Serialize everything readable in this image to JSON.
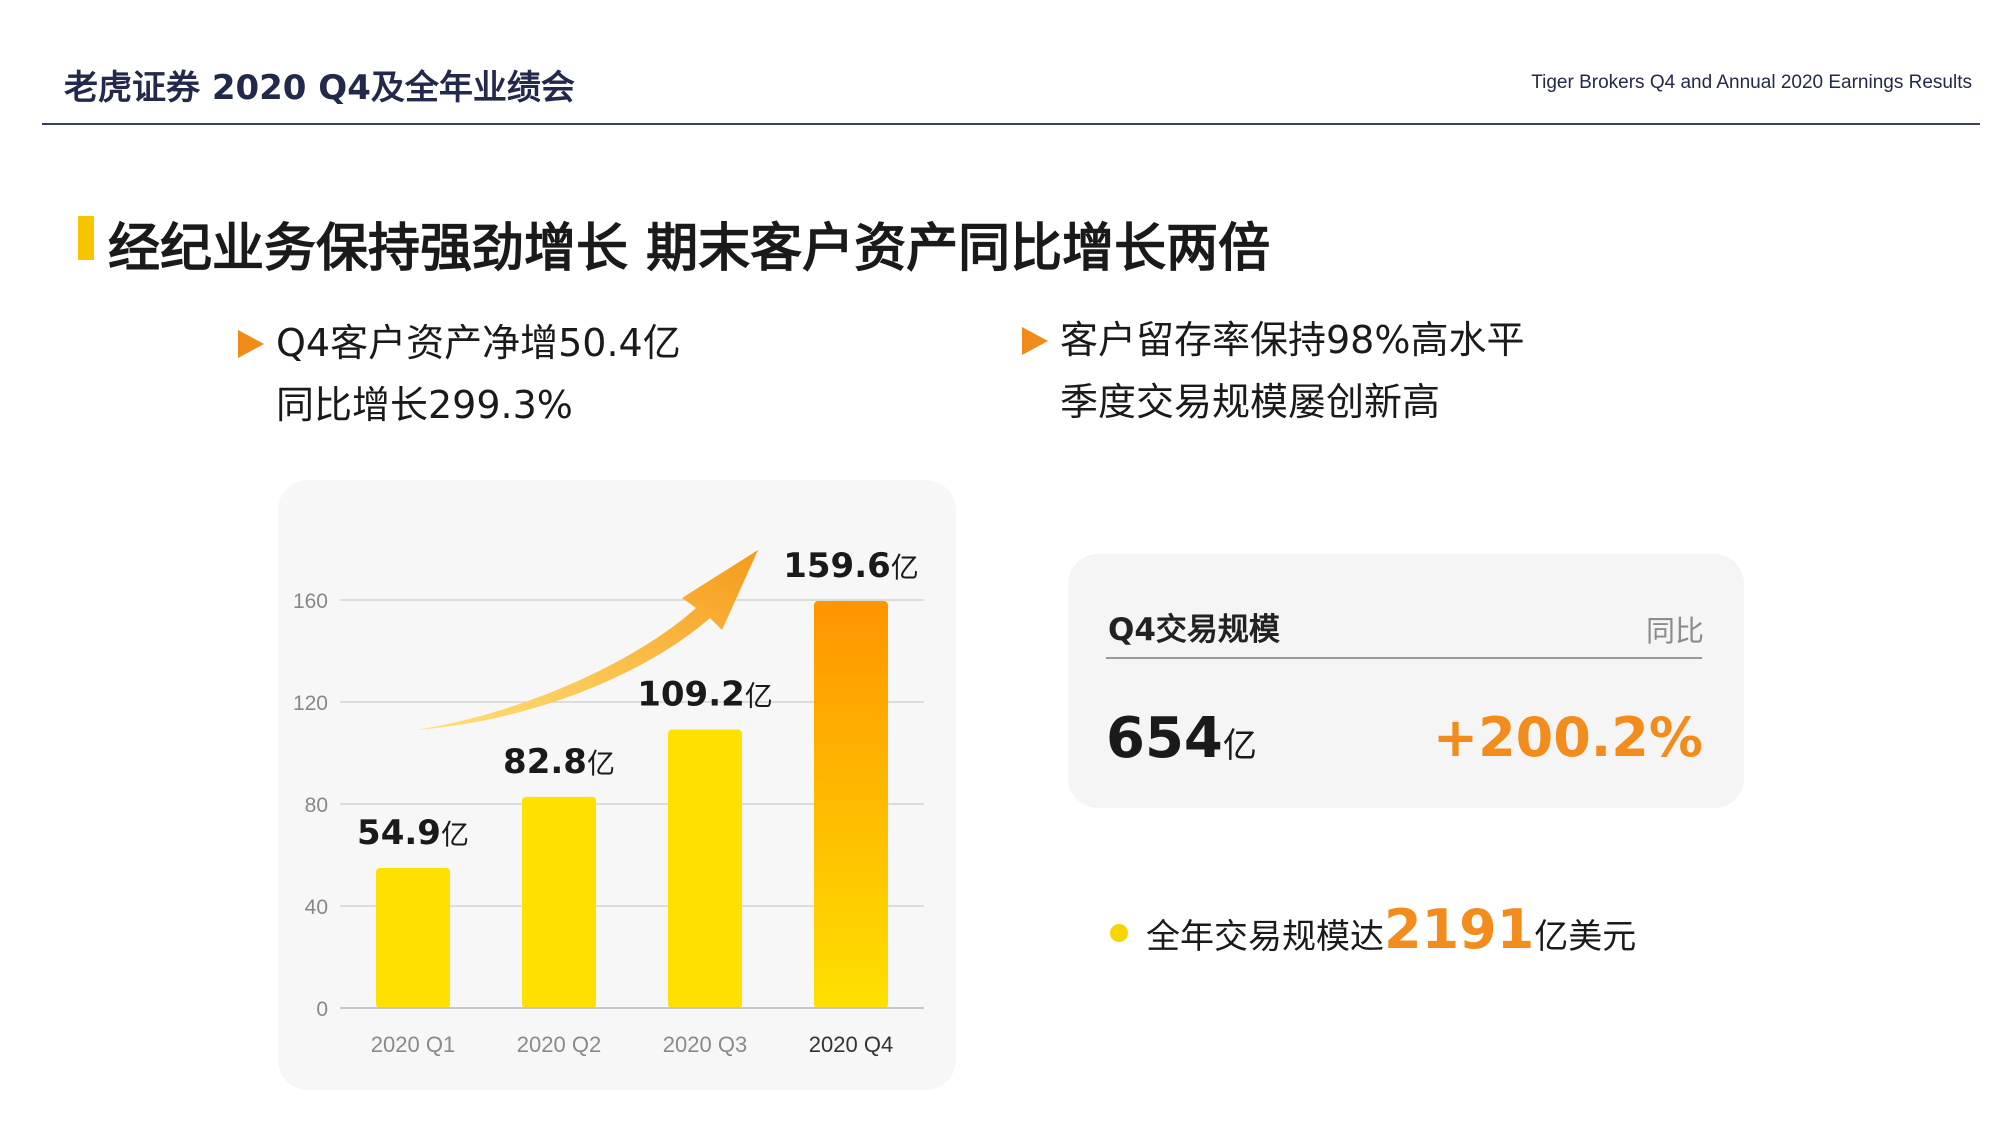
{
  "header": {
    "left": "老虎证券 2020 Q4及全年业绩会",
    "right": "Tiger Brokers Q4 and Annual 2020 Earnings Results"
  },
  "title": "经纪业务保持强劲增长 期末客户资产同比增长两倍",
  "bullets": [
    {
      "line1": "Q4客户资产净增50.4亿",
      "line2": "同比增长299.3%"
    },
    {
      "line1": "客户留存率保持98%高水平",
      "line2": "季度交易规模屡创新高"
    }
  ],
  "colors": {
    "accent_orange": "#f28c1c",
    "bar_yellow": "#ffe000",
    "bar_highlight_top": "#ff9500",
    "title_bar": "#f7c400",
    "header_navy": "#23294a"
  },
  "chart_data": {
    "type": "bar",
    "categories": [
      "2020 Q1",
      "2020 Q2",
      "2020 Q3",
      "2020 Q4"
    ],
    "values": [
      54.9,
      82.8,
      109.2,
      159.6
    ],
    "data_labels": [
      "54.9",
      "82.8",
      "109.2",
      "159.6"
    ],
    "value_unit": "亿",
    "ylim": [
      0,
      160
    ],
    "yticks": [
      "0",
      "40",
      "80",
      "120",
      "160"
    ],
    "grid": true,
    "highlight_index": 3,
    "trend_arrow": true
  },
  "stats_card": {
    "label": "Q4交易规模",
    "yoy_label": "同比",
    "value": "654",
    "value_unit": "亿",
    "yoy": "+200.2%"
  },
  "annual": {
    "prefix": "全年交易规模达",
    "number": "2191",
    "suffix": "亿美元"
  }
}
